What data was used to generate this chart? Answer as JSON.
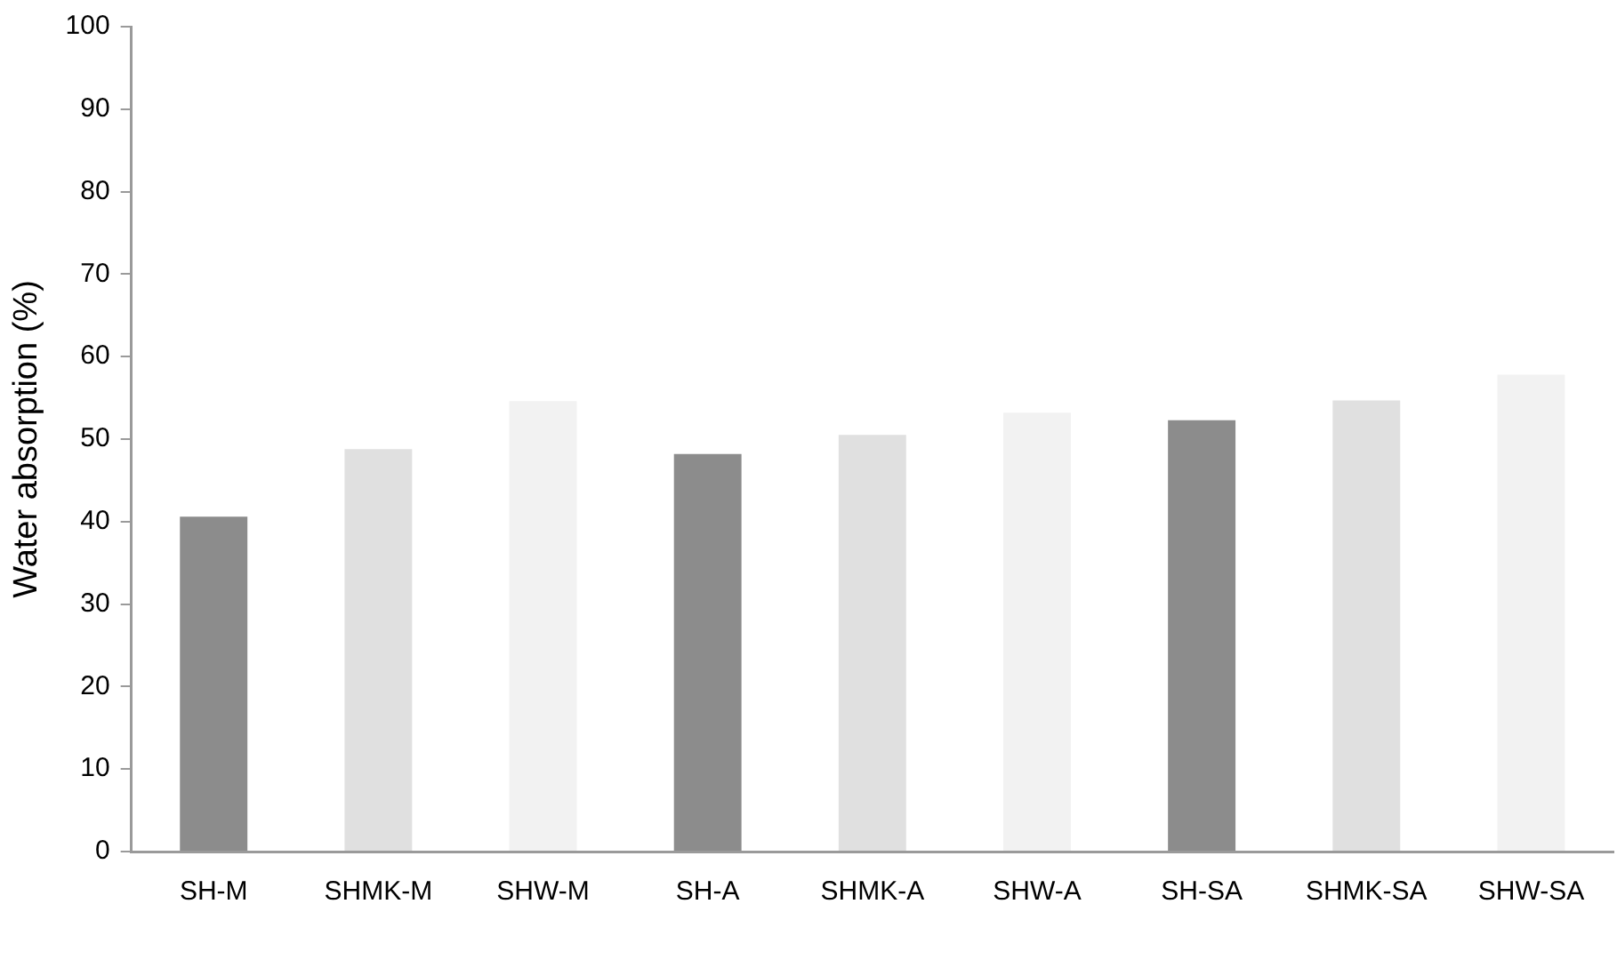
{
  "chart_data": {
    "type": "bar",
    "ylabel": "Water absorption (%)",
    "categories": [
      "SH-M",
      "SHMK-M",
      "SHW-M",
      "SH-A",
      "SHMK-A",
      "SHW-A",
      "SH-SA",
      "SHMK-SA",
      "SHW-SA"
    ],
    "values": [
      40.6,
      48.8,
      54.6,
      48.2,
      50.5,
      53.2,
      52.3,
      54.7,
      57.8
    ],
    "colors": [
      "#8c8c8c",
      "#e0e0e0",
      "#f2f2f2",
      "#8c8c8c",
      "#e0e0e0",
      "#f2f2f2",
      "#8c8c8c",
      "#e0e0e0",
      "#f2f2f2"
    ],
    "ylim": [
      0,
      100
    ],
    "yticks": [
      0,
      10,
      20,
      30,
      40,
      50,
      60,
      70,
      80,
      90,
      100
    ],
    "grid": false,
    "legend": false
  }
}
